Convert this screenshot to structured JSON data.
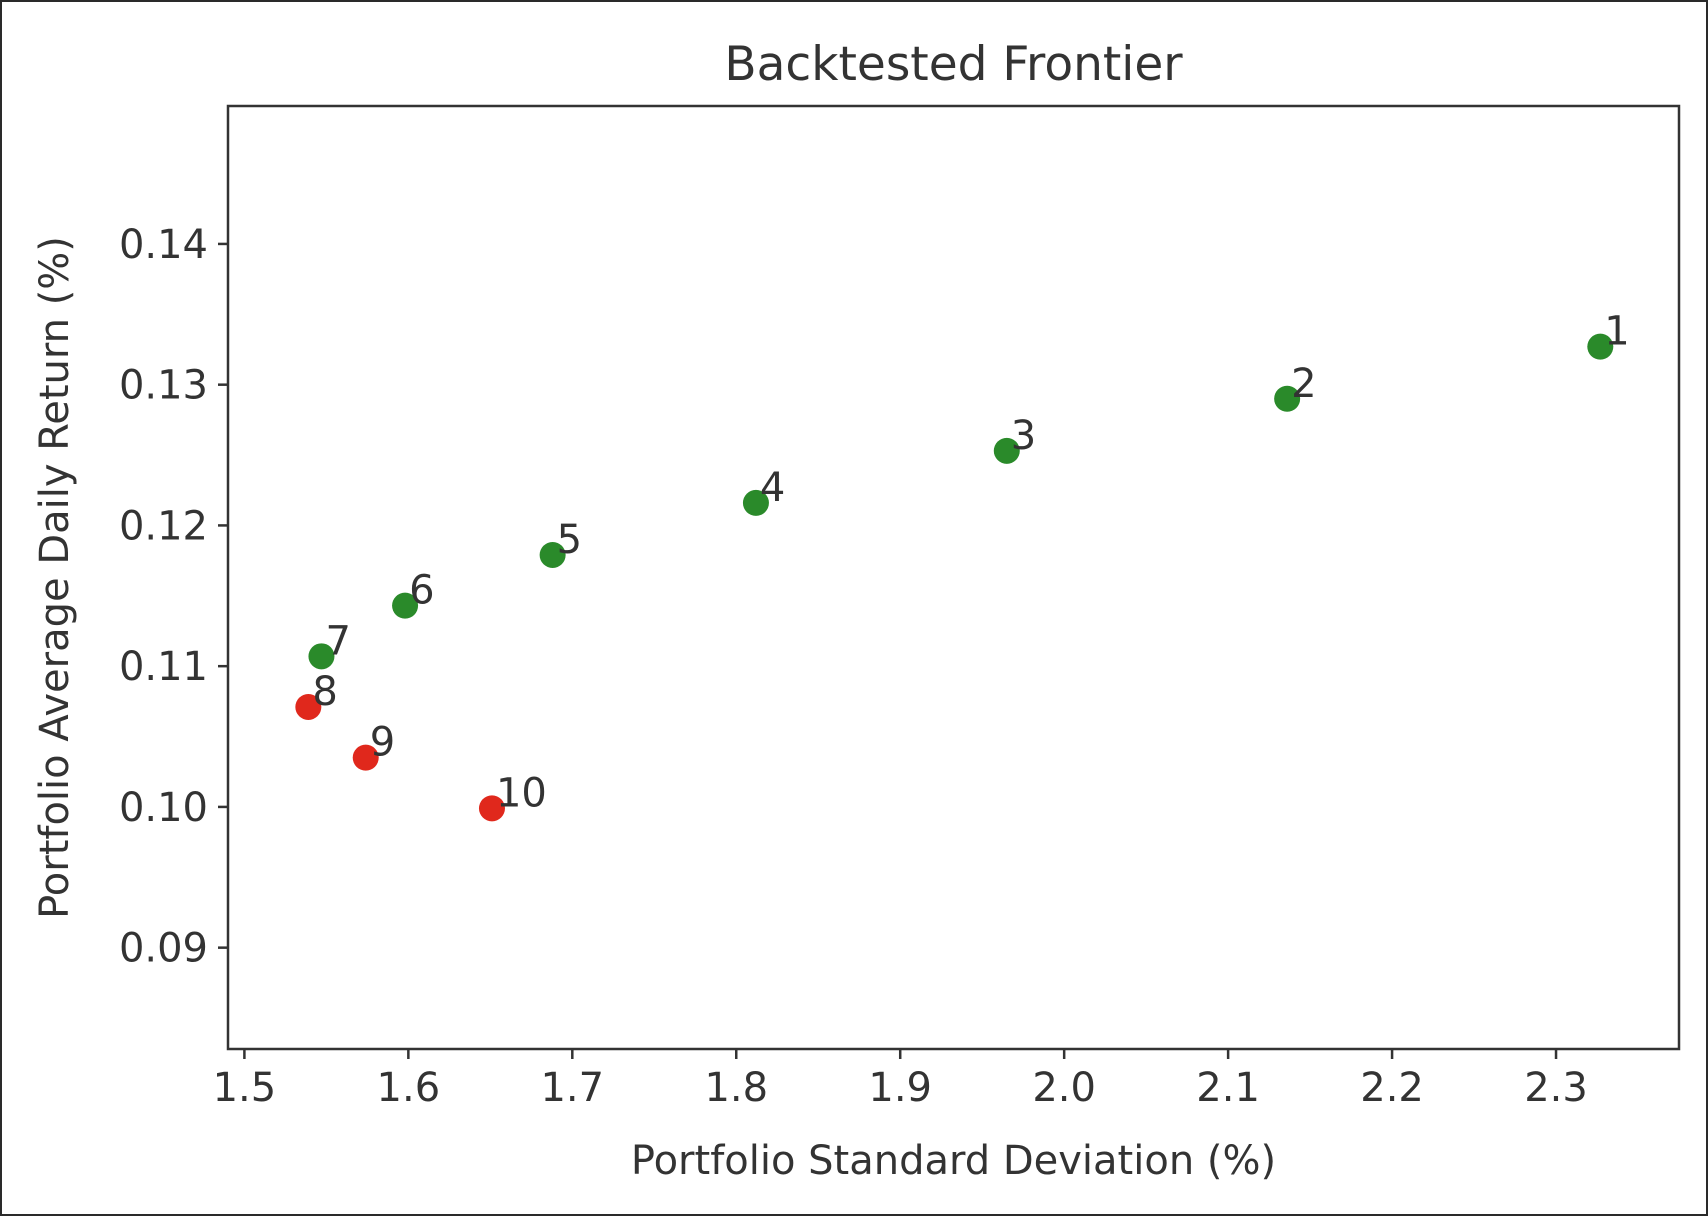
{
  "chart_data": {
    "type": "scatter",
    "title": "Backtested Frontier",
    "xlabel": "Portfolio Standard Deviation (%)",
    "ylabel": "Portfolio Average Daily Return (%)",
    "xlim": [
      1.49,
      2.375
    ],
    "ylim": [
      0.0828,
      0.1498
    ],
    "xticks": [
      1.5,
      1.6,
      1.7,
      1.8,
      1.9,
      2.0,
      2.1,
      2.2,
      2.3
    ],
    "xtick_labels": [
      "1.5",
      "1.6",
      "1.7",
      "1.8",
      "1.9",
      "2.0",
      "2.1",
      "2.2",
      "2.3"
    ],
    "yticks": [
      0.09,
      0.1,
      0.11,
      0.12,
      0.13,
      0.14
    ],
    "ytick_labels": [
      "0.09",
      "0.10",
      "0.11",
      "0.12",
      "0.13",
      "0.14"
    ],
    "grid": false,
    "colors": {
      "green": "#2a8a2a",
      "red": "#e0281c"
    },
    "points": [
      {
        "label": "1",
        "x": 2.327,
        "y": 0.1327,
        "color": "green"
      },
      {
        "label": "2",
        "x": 2.136,
        "y": 0.129,
        "color": "green"
      },
      {
        "label": "3",
        "x": 1.965,
        "y": 0.1253,
        "color": "green"
      },
      {
        "label": "4",
        "x": 1.812,
        "y": 0.1216,
        "color": "green"
      },
      {
        "label": "5",
        "x": 1.688,
        "y": 0.1179,
        "color": "green"
      },
      {
        "label": "6",
        "x": 1.598,
        "y": 0.1143,
        "color": "green"
      },
      {
        "label": "7",
        "x": 1.547,
        "y": 0.1107,
        "color": "green"
      },
      {
        "label": "8",
        "x": 1.539,
        "y": 0.1071,
        "color": "red"
      },
      {
        "label": "9",
        "x": 1.574,
        "y": 0.1035,
        "color": "red"
      },
      {
        "label": "10",
        "x": 1.651,
        "y": 0.0999,
        "color": "red"
      }
    ]
  }
}
